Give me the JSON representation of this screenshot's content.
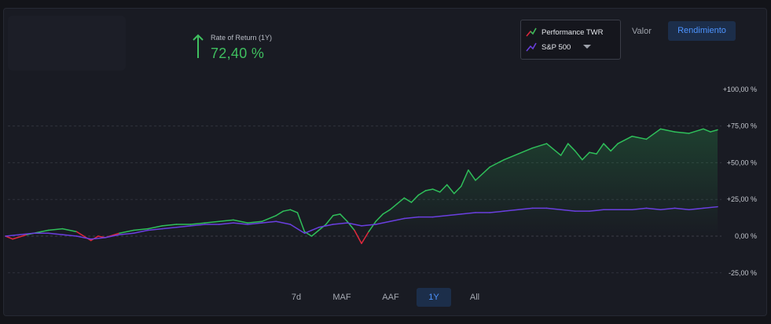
{
  "header": {
    "ror_label": "Rate of Return (1Y)",
    "ror_value": "72,40 %",
    "positive_color": "#3fbf5f"
  },
  "legend": {
    "items": [
      {
        "label": "Performance TWR",
        "colors": [
          "#e0283c",
          "#2fbf5a"
        ]
      },
      {
        "label": "S&P 500",
        "colors": [
          "#6a3fe0"
        ]
      }
    ]
  },
  "toggle": {
    "valor": "Valor",
    "rendimiento": "Rendimiento",
    "active": "rendimiento"
  },
  "ranges": {
    "items": [
      "7d",
      "MAF",
      "AAF",
      "1Y",
      "All"
    ],
    "active": "1Y"
  },
  "chart_data": {
    "type": "line",
    "title": "",
    "xlabel": "",
    "ylabel": "",
    "x_range": [
      0,
      1
    ],
    "ylim": [
      -25,
      100
    ],
    "yticks": [
      100,
      75,
      50,
      25,
      0,
      -25
    ],
    "ytick_labels": [
      "+100,00 %",
      "+75,00 %",
      "+50,00 %",
      "+25,00 %",
      "0,00 %",
      "-25,00 %"
    ],
    "grid": true,
    "series": [
      {
        "name": "Performance TWR",
        "color_positive": "#2fbf5a",
        "color_negative": "#e0283c",
        "fill": true,
        "x": [
          0,
          0.01,
          0.03,
          0.05,
          0.06,
          0.08,
          0.1,
          0.12,
          0.13,
          0.14,
          0.16,
          0.18,
          0.2,
          0.22,
          0.24,
          0.26,
          0.28,
          0.3,
          0.32,
          0.34,
          0.36,
          0.38,
          0.39,
          0.4,
          0.41,
          0.42,
          0.43,
          0.44,
          0.45,
          0.46,
          0.47,
          0.48,
          0.49,
          0.5,
          0.51,
          0.52,
          0.53,
          0.54,
          0.55,
          0.56,
          0.57,
          0.58,
          0.59,
          0.6,
          0.61,
          0.62,
          0.63,
          0.64,
          0.65,
          0.66,
          0.68,
          0.7,
          0.72,
          0.74,
          0.76,
          0.78,
          0.79,
          0.8,
          0.81,
          0.82,
          0.83,
          0.84,
          0.85,
          0.86,
          0.88,
          0.9,
          0.92,
          0.94,
          0.96,
          0.98,
          0.99,
          1.0
        ],
        "y": [
          0,
          -2,
          1,
          3,
          4,
          5,
          3,
          -3,
          0,
          -1,
          2,
          4,
          5,
          7,
          8,
          8,
          9,
          10,
          11,
          9,
          10,
          14,
          17,
          18,
          16,
          3,
          0,
          4,
          8,
          14,
          15,
          10,
          4,
          -5,
          3,
          10,
          15,
          18,
          22,
          26,
          23,
          28,
          31,
          32,
          30,
          35,
          29,
          34,
          45,
          38,
          47,
          52,
          56,
          60,
          63,
          55,
          63,
          58,
          52,
          57,
          56,
          63,
          58,
          63,
          68,
          66,
          73,
          71,
          70,
          73,
          71,
          72.4
        ]
      },
      {
        "name": "S&P 500",
        "color": "#6a3fe0",
        "x": [
          0,
          0.02,
          0.04,
          0.06,
          0.08,
          0.1,
          0.12,
          0.14,
          0.16,
          0.18,
          0.2,
          0.22,
          0.24,
          0.26,
          0.28,
          0.3,
          0.32,
          0.34,
          0.36,
          0.38,
          0.4,
          0.42,
          0.43,
          0.44,
          0.46,
          0.48,
          0.5,
          0.52,
          0.54,
          0.56,
          0.58,
          0.6,
          0.62,
          0.64,
          0.66,
          0.68,
          0.7,
          0.72,
          0.74,
          0.76,
          0.78,
          0.8,
          0.82,
          0.84,
          0.86,
          0.88,
          0.9,
          0.92,
          0.94,
          0.96,
          0.98,
          1.0
        ],
        "y": [
          0,
          1,
          2,
          2,
          1,
          0,
          -2,
          -1,
          1,
          2,
          4,
          5,
          6,
          7,
          8,
          8,
          9,
          8,
          9,
          10,
          8,
          2,
          4,
          6,
          8,
          9,
          7,
          8,
          10,
          12,
          13,
          13,
          14,
          15,
          16,
          16,
          17,
          18,
          19,
          19,
          18,
          17,
          17,
          18,
          18,
          18,
          19,
          18,
          19,
          18,
          19,
          20
        ]
      }
    ]
  }
}
